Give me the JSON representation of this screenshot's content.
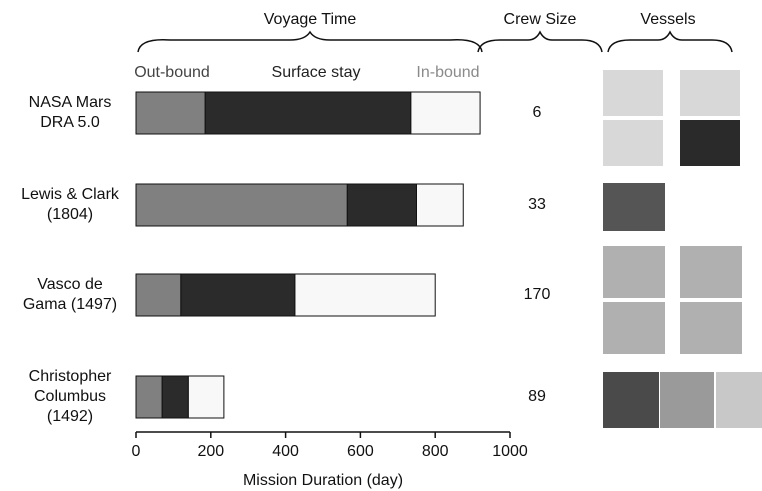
{
  "chart_data": {
    "type": "stacked-barh",
    "header_time": "Voyage Time",
    "header_crew": "Crew Size",
    "header_vessels": "Vessels",
    "categories": [
      "NASA Mars\nDRA 5.0",
      "Lewis & Clark\n(1804)",
      "Vasco de\nGama (1497)",
      "Christopher\nColumbus\n(1492)"
    ],
    "series": [
      {
        "name": "Out-bound",
        "color": "#808080",
        "label_color": "#444444",
        "values": [
          185,
          565,
          120,
          70
        ]
      },
      {
        "name": "Surface stay",
        "color": "#2b2b2b",
        "label_color": "#222222",
        "values": [
          550,
          185,
          305,
          70
        ]
      },
      {
        "name": "In-bound",
        "color": "#f8f8f8",
        "label_color": "#8a8a8a",
        "values": [
          185,
          125,
          375,
          95
        ]
      }
    ],
    "crew_size": [
      6,
      33,
      170,
      89
    ],
    "xlabel": "Mission Duration (day)",
    "xlim": [
      0,
      1000
    ],
    "xticks": [
      0,
      200,
      400,
      600,
      800,
      1000
    ]
  }
}
